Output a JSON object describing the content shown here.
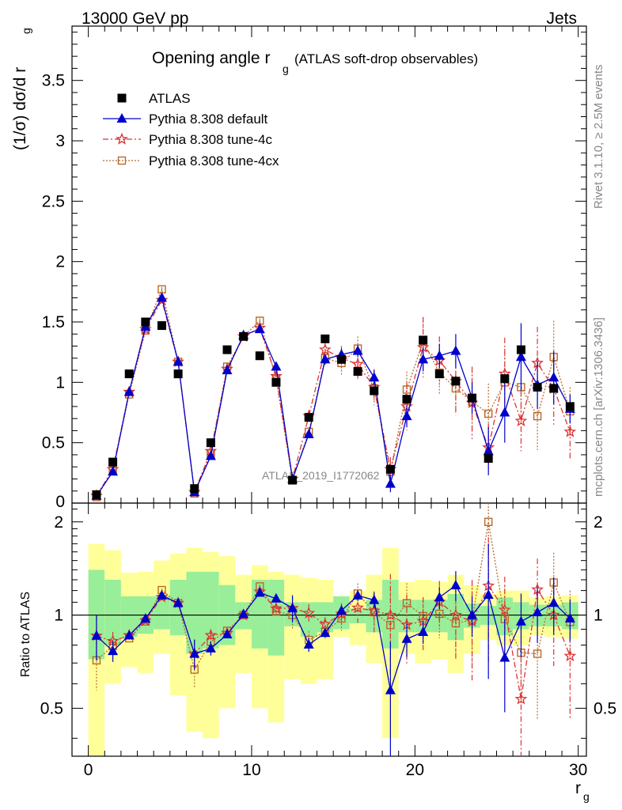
{
  "header": {
    "left": "13000 GeV pp",
    "right": "Jets"
  },
  "side_labels": {
    "rivet": "Rivet 3.1.10, ≥ 2.5M events",
    "mcplots": "mcplots.cern.ch [arXiv:1306.3436]"
  },
  "chart_data": {
    "type": "scatter",
    "title": "Opening angle r",
    "title_sub": "g",
    "title_note": "(ATLAS soft-drop observables)",
    "analysis_label": "ATLAS_2019_I1772062",
    "xlabel": "r",
    "xlabel_sub": "g",
    "ylabel": "(1/σ) dσ/d r",
    "ylabel_sub": "g",
    "ratio_ylabel": "Ratio to ATLAS",
    "xlim": [
      -1,
      30.5
    ],
    "ylim": [
      0,
      3.95
    ],
    "ratio_ylim": [
      0.35,
      2.3
    ],
    "x_ticks": [
      0,
      10,
      20,
      30
    ],
    "y_ticks": [
      0.5,
      1,
      1.5,
      2,
      2.5,
      3,
      3.5
    ],
    "y_tick_labels": [
      "0.5",
      "1",
      "1.5",
      "2",
      "2.5",
      "3",
      "3.5"
    ],
    "ratio_ticks": [
      0.5,
      1,
      2
    ],
    "ratio_tick_labels": [
      "0.5",
      "1",
      "2"
    ],
    "bottom_tick_label": "0",
    "x": [
      0.5,
      1.5,
      2.5,
      3.5,
      4.5,
      5.5,
      6.5,
      7.5,
      8.5,
      9.5,
      10.5,
      11.5,
      12.5,
      13.5,
      14.5,
      15.5,
      16.5,
      17.5,
      18.5,
      19.5,
      20.5,
      21.5,
      22.5,
      23.5,
      24.5,
      25.5,
      26.5,
      27.5,
      28.5,
      29.5
    ],
    "legend": [
      "ATLAS",
      "Pythia 8.308 default",
      "Pythia 8.308 tune-4c",
      "Pythia 8.308 tune-4cx"
    ],
    "series": [
      {
        "name": "ATLAS",
        "color": "#000000",
        "values": [
          0.07,
          0.34,
          1.07,
          1.5,
          1.47,
          1.07,
          0.12,
          0.5,
          1.27,
          1.38,
          1.22,
          1.0,
          0.19,
          0.71,
          1.36,
          1.19,
          1.09,
          0.93,
          0.28,
          0.86,
          1.35,
          1.07,
          1.01,
          0.87,
          0.37,
          1.03,
          1.27,
          0.96,
          0.95,
          0.8
        ]
      },
      {
        "name": "Pythia 8.308 default",
        "color": "#0000cc",
        "values": [
          0.06,
          0.26,
          0.92,
          1.46,
          1.7,
          1.17,
          0.09,
          0.39,
          1.1,
          1.39,
          1.44,
          1.13,
          0.2,
          0.57,
          1.19,
          1.23,
          1.26,
          1.04,
          0.16,
          0.72,
          1.19,
          1.22,
          1.26,
          0.87,
          0.43,
          0.75,
          1.21,
          0.98,
          1.04,
          0.78
        ],
        "errors": [
          0.01,
          0.02,
          0.02,
          0.02,
          0.02,
          0.02,
          0.01,
          0.02,
          0.02,
          0.02,
          0.02,
          0.02,
          0.02,
          0.03,
          0.04,
          0.05,
          0.05,
          0.06,
          0.07,
          0.09,
          0.1,
          0.1,
          0.14,
          0.13,
          0.2,
          0.25,
          0.28,
          0.2,
          0.22,
          0.12
        ]
      },
      {
        "name": "Pythia 8.308 tune-4c",
        "color": "#dd3333",
        "values": [
          0.06,
          0.28,
          0.92,
          1.44,
          1.68,
          1.17,
          0.09,
          0.43,
          1.11,
          1.38,
          1.45,
          1.05,
          0.2,
          0.72,
          1.27,
          1.2,
          1.15,
          0.96,
          0.28,
          0.8,
          1.29,
          1.18,
          1.01,
          0.83,
          0.46,
          1.07,
          0.68,
          1.16,
          0.95,
          0.59
        ],
        "errors": [
          0.01,
          0.02,
          0.02,
          0.02,
          0.02,
          0.02,
          0.01,
          0.02,
          0.02,
          0.02,
          0.02,
          0.04,
          0.02,
          0.05,
          0.07,
          0.1,
          0.12,
          0.15,
          0.1,
          0.2,
          0.25,
          0.2,
          0.28,
          0.3,
          0.2,
          0.3,
          0.25,
          0.3,
          0.3,
          0.22
        ]
      },
      {
        "name": "Pythia 8.308 tune-4cx",
        "color": "#b86a2a",
        "values": [
          0.05,
          0.27,
          0.9,
          1.43,
          1.77,
          1.17,
          0.08,
          0.41,
          1.13,
          1.38,
          1.51,
          1.03,
          0.19,
          0.59,
          1.2,
          1.16,
          1.28,
          0.95,
          0.26,
          0.94,
          1.34,
          1.08,
          0.95,
          0.84,
          0.74,
          1.0,
          0.96,
          0.72,
          1.21,
          0.76
        ],
        "errors": [
          0.01,
          0.02,
          0.02,
          0.02,
          0.02,
          0.02,
          0.01,
          0.02,
          0.02,
          0.02,
          0.02,
          0.03,
          0.02,
          0.04,
          0.06,
          0.1,
          0.1,
          0.1,
          0.08,
          0.15,
          0.2,
          0.18,
          0.2,
          0.25,
          0.25,
          0.28,
          0.3,
          0.28,
          0.3,
          0.2
        ]
      }
    ],
    "ratio_band_inner": [
      [
        0.72,
        1.4
      ],
      [
        0.8,
        1.3
      ],
      [
        0.85,
        1.15
      ],
      [
        0.87,
        1.15
      ],
      [
        0.9,
        1.15
      ],
      [
        0.86,
        1.3
      ],
      [
        0.75,
        1.38
      ],
      [
        0.78,
        1.38
      ],
      [
        0.8,
        1.25
      ],
      [
        0.9,
        1.1
      ],
      [
        0.78,
        1.3
      ],
      [
        0.74,
        1.3
      ],
      [
        0.92,
        1.1
      ],
      [
        0.85,
        1.1
      ],
      [
        0.88,
        1.1
      ],
      [
        0.9,
        1.15
      ],
      [
        0.94,
        1.05
      ],
      [
        0.88,
        1.12
      ],
      [
        0.78,
        1.3
      ],
      [
        0.88,
        1.12
      ],
      [
        0.88,
        1.12
      ],
      [
        0.88,
        1.12
      ],
      [
        0.83,
        1.17
      ],
      [
        0.91,
        1.09
      ],
      [
        0.93,
        1.07
      ],
      [
        0.86,
        1.14
      ],
      [
        0.9,
        1.1
      ],
      [
        0.92,
        1.08
      ],
      [
        0.92,
        1.08
      ],
      [
        0.9,
        1.1
      ]
    ],
    "ratio_band_outer": [
      [
        0.35,
        1.7
      ],
      [
        0.6,
        1.62
      ],
      [
        0.68,
        1.37
      ],
      [
        0.65,
        1.38
      ],
      [
        0.75,
        1.5
      ],
      [
        0.55,
        1.58
      ],
      [
        0.42,
        1.65
      ],
      [
        0.4,
        1.6
      ],
      [
        0.5,
        1.55
      ],
      [
        0.65,
        1.35
      ],
      [
        0.5,
        1.45
      ],
      [
        0.45,
        1.38
      ],
      [
        0.62,
        1.35
      ],
      [
        0.6,
        1.32
      ],
      [
        0.62,
        1.3
      ],
      [
        0.85,
        1.15
      ],
      [
        0.8,
        1.2
      ],
      [
        0.7,
        1.35
      ],
      [
        0.4,
        1.65
      ],
      [
        0.75,
        1.28
      ],
      [
        0.7,
        1.3
      ],
      [
        0.72,
        1.28
      ],
      [
        0.65,
        1.35
      ],
      [
        0.75,
        1.25
      ],
      [
        0.83,
        1.17
      ],
      [
        0.8,
        1.2
      ],
      [
        0.8,
        1.2
      ],
      [
        0.86,
        1.14
      ],
      [
        0.85,
        1.15
      ],
      [
        0.84,
        1.16
      ]
    ]
  }
}
